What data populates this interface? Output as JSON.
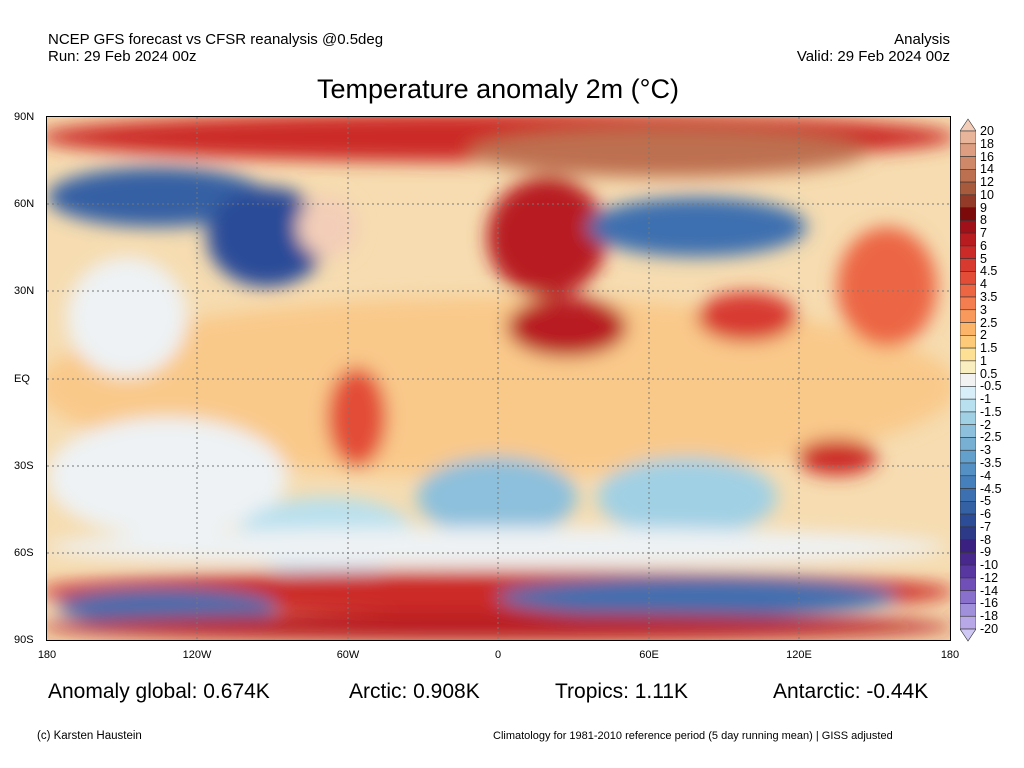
{
  "header": {
    "left_line1": "NCEP GFS forecast vs CFSR reanalysis @0.5deg",
    "left_line2": "Run: 29 Feb 2024 00z",
    "right_line1": "Analysis",
    "right_line2": "Valid: 29 Feb 2024 00z"
  },
  "title": "Temperature anomaly 2m (°C)",
  "axes": {
    "lat_labels": [
      "90N",
      "60N",
      "30N",
      "EQ",
      "30S",
      "60S",
      "90S"
    ],
    "lon_labels": [
      "180",
      "120W",
      "60W",
      "0",
      "60E",
      "120E",
      "180"
    ]
  },
  "stats": {
    "global": "Anomaly global: 0.674K",
    "arctic": "Arctic: 0.908K",
    "tropics": "Tropics: 1.11K",
    "antarctic": "Antarctic: -0.44K"
  },
  "footer": {
    "left": "(c) Karsten Haustein",
    "right": "Climatology for 1981-2010 reference period (5 day running mean) | GISS adjusted"
  },
  "colorbar": {
    "labels": [
      "20",
      "18",
      "16",
      "14",
      "12",
      "10",
      "9",
      "8",
      "7",
      "6",
      "5",
      "4.5",
      "4",
      "3.5",
      "3",
      "2.5",
      "2",
      "1.5",
      "1",
      "0.5",
      "-0.5",
      "-1",
      "-1.5",
      "-2",
      "-2.5",
      "-3",
      "-3.5",
      "-4",
      "-4.5",
      "-5",
      "-6",
      "-7",
      "-8",
      "-9",
      "-10",
      "-12",
      "-14",
      "-16",
      "-18",
      "-20"
    ],
    "colors": [
      "#f3cdb8",
      "#e8b49a",
      "#dc9d80",
      "#cf8868",
      "#bd7050",
      "#a85a3c",
      "#943a28",
      "#7c0a0a",
      "#a01018",
      "#b81c20",
      "#cc2a28",
      "#d83a30",
      "#e34d38",
      "#ec6644",
      "#f47e50",
      "#f99a5c",
      "#fcb468",
      "#fdca7a",
      "#fde094",
      "#f8eec0",
      "#f2f2f2",
      "#d8eef8",
      "#b8e0ee",
      "#a0d0e4",
      "#8cc0dc",
      "#78b0d4",
      "#64a0cc",
      "#5490c4",
      "#4680bc",
      "#3c70b0",
      "#3460a4",
      "#2c4c98",
      "#2c3a88",
      "#3a2080",
      "#48288c",
      "#5838a0",
      "#7050b8",
      "#8870cc",
      "#a090dc",
      "#b8a8e8",
      "#d0c8f4"
    ]
  }
}
